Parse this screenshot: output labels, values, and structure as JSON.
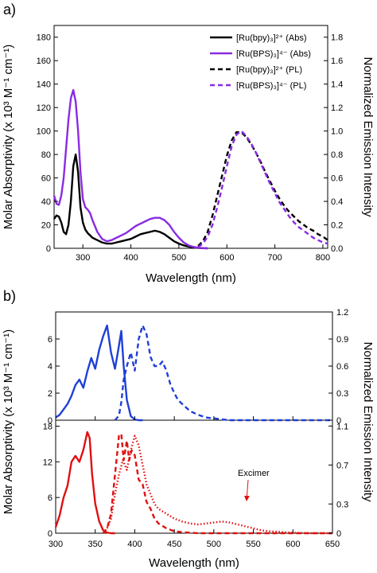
{
  "chart_data": [
    {
      "panel_label": "a)",
      "type": "line",
      "xlabel": "Wavelength (nm)",
      "ylabel": "Molar Absorptivity (x 10³ M⁻¹ cm⁻¹)",
      "ylabel_right": "Normalized Emission Intensity",
      "xlim": [
        240,
        810
      ],
      "ylim": [
        0,
        190
      ],
      "ylim_right": [
        0,
        1.9
      ],
      "x_ticks": [
        "300",
        "400",
        "500",
        "600",
        "700",
        "800"
      ],
      "y_ticks": [
        "0",
        "20",
        "40",
        "60",
        "80",
        "100",
        "120",
        "140",
        "160",
        "180"
      ],
      "y_ticks_right": [
        "0.0",
        "0.2",
        "0.4",
        "0.6",
        "0.8",
        "1.0",
        "1.2",
        "1.4",
        "1.6",
        "1.8"
      ],
      "legend": {
        "placement": "top-right",
        "entries": [
          {
            "label": "[Ru(bpy)₃]²⁺ (Abs)",
            "color": "#000000",
            "style": "solid"
          },
          {
            "label": "[Ru(BPS)₃]⁴⁻ (Abs)",
            "color": "#8A2BE2",
            "style": "solid"
          },
          {
            "label": "[Ru(bpy)₃]²⁺ (PL)",
            "color": "#000000",
            "style": "dashed"
          },
          {
            "label": "[Ru(BPS)₃]⁴⁻ (PL)",
            "color": "#8A2BE2",
            "style": "dashed"
          }
        ]
      },
      "series": [
        {
          "color": "#000000",
          "style": "solid",
          "axis": "left",
          "x": [
            240,
            245,
            250,
            255,
            260,
            265,
            270,
            275,
            280,
            285,
            290,
            295,
            300,
            305,
            310,
            315,
            320,
            330,
            340,
            350,
            360,
            370,
            380,
            390,
            400,
            410,
            420,
            430,
            440,
            450,
            460,
            470,
            480,
            490,
            500,
            510,
            520,
            530,
            540,
            550,
            560
          ],
          "y": [
            25,
            28,
            27,
            22,
            14,
            12,
            20,
            40,
            70,
            80,
            65,
            35,
            22,
            16,
            13,
            11,
            9,
            7,
            5,
            4,
            4,
            5,
            6,
            7,
            8,
            10,
            12,
            13,
            14,
            15,
            14,
            12,
            9,
            6,
            4,
            2.5,
            1.5,
            0.8,
            0.3,
            0.1,
            0
          ]
        },
        {
          "color": "#8A2BE2",
          "style": "solid",
          "axis": "left",
          "x": [
            240,
            245,
            250,
            255,
            260,
            265,
            270,
            275,
            280,
            285,
            290,
            295,
            300,
            305,
            310,
            315,
            320,
            330,
            340,
            350,
            360,
            370,
            380,
            390,
            400,
            410,
            420,
            430,
            440,
            450,
            460,
            470,
            480,
            490,
            500,
            510,
            520,
            530,
            540,
            550,
            560
          ],
          "y": [
            45,
            38,
            37,
            45,
            60,
            85,
            110,
            128,
            135,
            125,
            100,
            65,
            42,
            35,
            33,
            30,
            24,
            14,
            8,
            6,
            7,
            9,
            11,
            13,
            16,
            19,
            21,
            23,
            25,
            26,
            26,
            24,
            20,
            14,
            9,
            5,
            2.5,
            1.2,
            0.5,
            0.2,
            0
          ]
        },
        {
          "color": "#000000",
          "style": "dashed",
          "axis": "right",
          "x": [
            540,
            550,
            560,
            570,
            580,
            590,
            600,
            610,
            620,
            630,
            640,
            650,
            660,
            670,
            680,
            690,
            700,
            710,
            720,
            730,
            740,
            750,
            760,
            770,
            780,
            790,
            800,
            810
          ],
          "y": [
            0.02,
            0.06,
            0.14,
            0.28,
            0.45,
            0.62,
            0.79,
            0.92,
            0.99,
            0.99,
            0.95,
            0.89,
            0.82,
            0.74,
            0.65,
            0.57,
            0.49,
            0.42,
            0.36,
            0.31,
            0.27,
            0.23,
            0.2,
            0.17,
            0.15,
            0.12,
            0.1,
            0.07
          ]
        },
        {
          "color": "#8A2BE2",
          "style": "dashed",
          "axis": "right",
          "x": [
            540,
            550,
            560,
            570,
            580,
            590,
            600,
            610,
            620,
            630,
            640,
            650,
            660,
            670,
            680,
            690,
            700,
            710,
            720,
            730,
            740,
            750,
            760,
            770,
            780,
            790,
            800,
            810
          ],
          "y": [
            0.01,
            0.04,
            0.1,
            0.2,
            0.35,
            0.52,
            0.7,
            0.87,
            0.97,
            1.0,
            0.96,
            0.9,
            0.82,
            0.73,
            0.64,
            0.55,
            0.47,
            0.39,
            0.33,
            0.27,
            0.22,
            0.18,
            0.15,
            0.12,
            0.09,
            0.07,
            0.05,
            0.04
          ]
        }
      ]
    },
    {
      "panel_label": "b)",
      "type": "line",
      "xlabel": "Wavelength (nm)",
      "ylabel": "Molar Absorptivity (x 10³ M⁻¹ cm⁻¹)",
      "ylabel_right": "Normalized Emission Intensity",
      "xlim": [
        300,
        650
      ],
      "x_ticks": [
        "300",
        "350",
        "400",
        "450",
        "500",
        "550",
        "600",
        "650"
      ],
      "subplots": [
        {
          "position": "top",
          "ylim": [
            0,
            8
          ],
          "ylim_right": [
            0,
            1.2
          ],
          "y_ticks": [
            "0",
            "2",
            "4",
            "6"
          ],
          "y_ticks_right": [
            "0",
            "0.3",
            "0.6",
            "0.9",
            "1.2"
          ],
          "series": [
            {
              "color": "#1F3FD8",
              "style": "solid",
              "axis": "left",
              "x": [
                300,
                305,
                310,
                315,
                320,
                325,
                330,
                335,
                340,
                345,
                350,
                355,
                360,
                365,
                370,
                375,
                380,
                383,
                386,
                390,
                395,
                400,
                405,
                410
              ],
              "y": [
                0.2,
                0.4,
                0.8,
                1.2,
                1.8,
                2.6,
                3.0,
                2.4,
                3.6,
                4.6,
                3.8,
                5.2,
                6.2,
                7.0,
                5.0,
                3.8,
                5.5,
                6.6,
                4.0,
                1.5,
                0.3,
                0.05,
                0,
                0
              ]
            },
            {
              "color": "#1F3FD8",
              "style": "dashed",
              "axis": "right",
              "x": [
                375,
                380,
                383,
                386,
                390,
                395,
                400,
                405,
                410,
                415,
                420,
                425,
                430,
                435,
                440,
                445,
                450,
                455,
                460,
                465,
                470,
                480,
                490,
                500,
                510,
                520,
                540,
                560,
                580,
                600,
                620,
                650
              ],
              "y": [
                0,
                0.05,
                0.2,
                0.45,
                0.6,
                0.75,
                0.55,
                0.9,
                1.05,
                0.95,
                0.7,
                0.6,
                0.6,
                0.65,
                0.55,
                0.4,
                0.3,
                0.22,
                0.18,
                0.14,
                0.1,
                0.06,
                0.03,
                0.02,
                0.01,
                0,
                0,
                0,
                0,
                0,
                0,
                0
              ]
            }
          ]
        },
        {
          "position": "bottom",
          "ylim": [
            0,
            19
          ],
          "ylim_right": [
            0,
            1.16
          ],
          "y_ticks": [
            "0",
            "6",
            "12",
            "18"
          ],
          "y_ticks_right": [
            "0",
            "0.3",
            "0.7",
            "1.1"
          ],
          "annotation": "Excimer",
          "series": [
            {
              "color": "#E01010",
              "style": "solid",
              "axis": "left",
              "x": [
                300,
                305,
                310,
                315,
                320,
                325,
                330,
                335,
                340,
                343,
                346,
                350,
                355,
                360,
                365,
                370,
                375
              ],
              "y": [
                1,
                3,
                6,
                8,
                12,
                13,
                12,
                14,
                17,
                16,
                10,
                5,
                2,
                0.5,
                0.1,
                0,
                0
              ]
            },
            {
              "color": "#E01010",
              "style": "dashed",
              "axis": "right",
              "x": [
                360,
                365,
                370,
                375,
                380,
                383,
                386,
                390,
                393,
                396,
                400,
                405,
                410,
                415,
                420,
                425,
                430,
                440,
                450,
                460,
                480,
                500,
                520,
                550,
                580,
                620,
                650
              ],
              "y": [
                0,
                0.05,
                0.2,
                0.6,
                1.0,
                1.02,
                0.75,
                0.95,
                0.75,
                0.85,
                0.8,
                0.55,
                0.5,
                0.32,
                0.25,
                0.15,
                0.1,
                0.05,
                0.02,
                0.01,
                0,
                0,
                0,
                0,
                0,
                0,
                0
              ]
            },
            {
              "color": "#E01010",
              "style": "dotted",
              "axis": "right",
              "x": [
                360,
                365,
                370,
                375,
                380,
                385,
                390,
                395,
                400,
                405,
                410,
                415,
                420,
                425,
                430,
                440,
                450,
                460,
                470,
                480,
                490,
                500,
                510,
                520,
                530,
                540,
                550,
                560,
                570,
                580,
                590,
                600,
                620,
                650
              ],
              "y": [
                0,
                0.05,
                0.15,
                0.4,
                0.6,
                0.75,
                0.65,
                0.85,
                1.0,
                0.9,
                0.7,
                0.5,
                0.4,
                0.3,
                0.25,
                0.2,
                0.15,
                0.12,
                0.1,
                0.09,
                0.1,
                0.11,
                0.12,
                0.11,
                0.09,
                0.07,
                0.05,
                0.03,
                0.02,
                0.015,
                0.01,
                0.005,
                0,
                0
              ]
            }
          ]
        }
      ]
    }
  ]
}
